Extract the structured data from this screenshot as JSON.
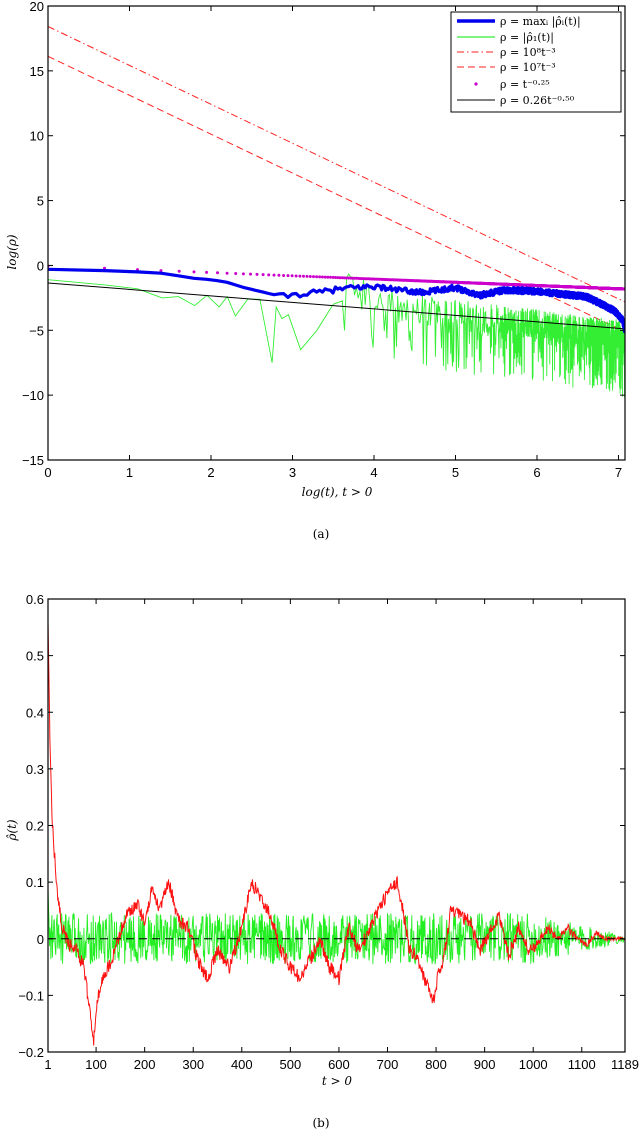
{
  "chart_data": [
    {
      "id": "a",
      "type": "line",
      "caption": "(a)",
      "title": "",
      "xlabel": "log(t), t > 0",
      "ylabel": "log(ρ)",
      "xlim": [
        0,
        7.08
      ],
      "ylim": [
        -15,
        20
      ],
      "xticks": [
        0,
        1,
        2,
        3,
        4,
        5,
        6,
        7
      ],
      "yticks": [
        -15,
        -10,
        -5,
        0,
        5,
        10,
        15,
        20
      ],
      "grid": false,
      "legend_position": "upper right",
      "legend": [
        {
          "label": "ρ = maxᵢ |ρ̂ᵢ(t)|",
          "color": "#0000ee",
          "style": "thick-solid"
        },
        {
          "label": "ρ = |ρ̂₁(t)|",
          "color": "#33ee33",
          "style": "solid"
        },
        {
          "label": "ρ = 10⁸t⁻³",
          "color": "#ff2222",
          "style": "dash-dot"
        },
        {
          "label": "ρ = 10⁷t⁻³",
          "color": "#ff2222",
          "style": "dashed"
        },
        {
          "label": "ρ = t⁻⁰·²⁵",
          "color": "#cc00cc",
          "style": "dots"
        },
        {
          "label": "ρ = 0.26t⁻⁰·⁵⁰",
          "color": "#000000",
          "style": "solid"
        }
      ],
      "series": [
        {
          "name": "max_i |rho_i(t)|",
          "color": "#0000ee",
          "x": [
            0,
            0.7,
            1.1,
            1.4,
            1.6,
            1.8,
            2.0,
            2.2,
            2.4,
            2.6,
            2.8,
            2.9,
            3.1,
            3.3,
            3.6,
            4.0,
            4.3,
            4.6,
            5.0,
            5.3,
            5.6,
            6.0,
            6.3,
            6.6,
            6.8,
            6.95,
            7.05,
            7.08
          ],
          "y": [
            -0.3,
            -0.4,
            -0.5,
            -0.6,
            -0.8,
            -1.0,
            -1.1,
            -1.3,
            -1.7,
            -2.0,
            -2.3,
            -2.4,
            -2.2,
            -2.1,
            -1.8,
            -1.6,
            -1.9,
            -2.1,
            -1.7,
            -2.3,
            -1.9,
            -2.0,
            -2.2,
            -2.4,
            -3.0,
            -3.5,
            -4.2,
            -5.0
          ]
        },
        {
          "name": "|rho_1(t)|",
          "color": "#33ee33",
          "noisy": true,
          "x": [
            0,
            0.7,
            1.1,
            1.4,
            1.6,
            1.8,
            1.95,
            2.1,
            2.2,
            2.3,
            2.45,
            2.6,
            2.75,
            2.8,
            2.87,
            2.95,
            3.1,
            3.3,
            3.5,
            3.7,
            3.9,
            4.1,
            4.4,
            4.7,
            5.0,
            5.5,
            6.0,
            6.5,
            7.0,
            7.08
          ],
          "y": [
            -1.1,
            -1.5,
            -1.8,
            -2.5,
            -2.4,
            -3.1,
            -2.3,
            -3.2,
            -2.4,
            -3.9,
            -2.6,
            -2.6,
            -7.5,
            -3.2,
            -4.1,
            -3.8,
            -6.5,
            -5.0,
            -3.0,
            -1.9,
            -2.4,
            -3.3,
            -3.8,
            -4.0,
            -4.3,
            -4.6,
            -5.0,
            -5.5,
            -5.8,
            -6.5
          ],
          "noise_start_x": 3.6,
          "noise_amp_down": 4.0,
          "noise_amp_up": 1.3
        },
        {
          "name": "1e8 t^-3",
          "color": "#ff2222",
          "x": [
            0,
            7.08
          ],
          "y": [
            18.42,
            -2.82
          ]
        },
        {
          "name": "1e7 t^-3",
          "color": "#ff2222",
          "x": [
            0,
            7.08
          ],
          "y": [
            16.12,
            -5.12
          ]
        },
        {
          "name": "t^-0.25",
          "color": "#cc00cc",
          "formula": "log t^-0.25 sampled at t=1..1189",
          "slope": -0.25,
          "intercept": 0
        },
        {
          "name": "0.26 t^-0.50",
          "color": "#000000",
          "x": [
            0,
            7.08
          ],
          "y": [
            -1.35,
            -4.89
          ]
        }
      ]
    },
    {
      "id": "b",
      "type": "line",
      "caption": "(b)",
      "title": "",
      "xlabel": "t > 0",
      "ylabel": "ρ̂(t)",
      "xlim": [
        1,
        1189
      ],
      "ylim": [
        -0.2,
        0.6
      ],
      "xticks": [
        1,
        100,
        200,
        300,
        400,
        500,
        600,
        700,
        800,
        900,
        1000,
        1100,
        1189
      ],
      "yticks": [
        -0.2,
        -0.1,
        0,
        0.1,
        0.2,
        0.3,
        0.4,
        0.5,
        0.6
      ],
      "grid": false,
      "reference_line": {
        "y": 0,
        "style": "dashed",
        "color": "#000000"
      },
      "series": [
        {
          "name": "red series",
          "color": "#ff1111",
          "x": [
            1,
            5,
            10,
            20,
            30,
            45,
            60,
            75,
            90,
            95,
            100,
            110,
            125,
            140,
            160,
            185,
            200,
            215,
            230,
            250,
            270,
            290,
            310,
            330,
            350,
            375,
            400,
            420,
            440,
            460,
            480,
            500,
            520,
            545,
            560,
            580,
            600,
            620,
            640,
            660,
            680,
            700,
            720,
            730,
            745,
            760,
            780,
            795,
            805,
            815,
            830,
            850,
            870,
            890,
            910,
            930,
            950,
            970,
            990,
            1010,
            1030,
            1050,
            1070,
            1090,
            1110,
            1130,
            1150,
            1170,
            1189
          ],
          "y": [
            0.56,
            0.35,
            0.2,
            0.08,
            0.02,
            -0.01,
            -0.02,
            -0.05,
            -0.15,
            -0.18,
            -0.12,
            -0.08,
            -0.05,
            -0.02,
            0.04,
            0.06,
            0.03,
            0.09,
            0.05,
            0.1,
            0.03,
            0.02,
            -0.04,
            -0.07,
            -0.02,
            -0.05,
            0.02,
            0.1,
            0.07,
            0.04,
            -0.02,
            -0.05,
            -0.07,
            -0.03,
            0.0,
            -0.05,
            -0.07,
            0.02,
            -0.02,
            0.01,
            0.05,
            0.08,
            0.1,
            0.06,
            -0.02,
            -0.03,
            -0.08,
            -0.11,
            -0.06,
            -0.04,
            0.05,
            0.04,
            0.03,
            -0.02,
            0.01,
            0.04,
            -0.03,
            0.02,
            -0.02,
            -0.01,
            0.02,
            0.0,
            0.02,
            0.0,
            -0.01,
            0.01,
            0.0,
            0.0,
            0.0
          ],
          "jitter": 0.012
        },
        {
          "name": "green series",
          "color": "#22ee22",
          "noisy": true,
          "start_value": 0.09,
          "noise_amp": 0.045,
          "decay_from": 1000,
          "end_amp": 0.006
        }
      ]
    }
  ],
  "chart_a": {
    "axis_labels_x": [
      "0",
      "1",
      "2",
      "3",
      "4",
      "5",
      "6",
      "7"
    ],
    "axis_labels_y": [
      "−15",
      "−10",
      "−5",
      "0",
      "5",
      "10",
      "15",
      "20"
    ],
    "xlabel": "log(t), t > 0",
    "ylabel": "log(ρ)",
    "caption": "(a)",
    "legend_labels": [
      "ρ = maxᵢ |ρ̂ᵢ(t)|",
      "ρ = |ρ̂₁(t)|",
      "ρ = 10⁸t⁻³",
      "ρ = 10⁷t⁻³",
      "ρ = t⁻⁰·²⁵",
      "ρ = 0.26t⁻⁰·⁵⁰"
    ]
  },
  "chart_b": {
    "axis_labels_x": [
      "1",
      "100",
      "200",
      "300",
      "400",
      "500",
      "600",
      "700",
      "800",
      "900",
      "1000",
      "1100",
      "1189"
    ],
    "axis_labels_y": [
      "−0.2",
      "−0.1",
      "0",
      "0.1",
      "0.2",
      "0.3",
      "0.4",
      "0.5",
      "0.6"
    ],
    "xlabel": "t > 0",
    "ylabel": "ρ̂(t)",
    "caption": "(b)"
  }
}
